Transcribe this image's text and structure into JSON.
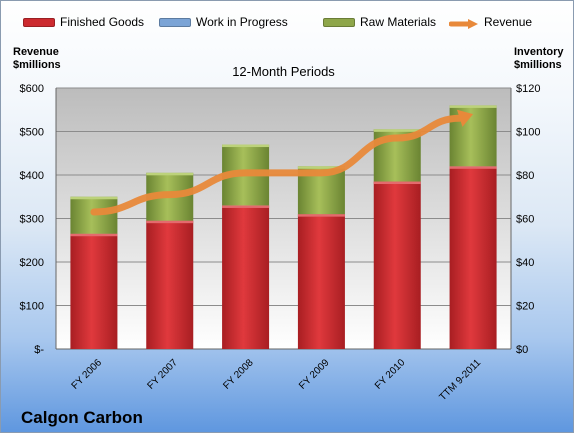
{
  "chart_data": {
    "type": "bar",
    "title": "12-Month Periods",
    "company": "Calgon Carbon",
    "y_left": {
      "label_line1": "Revenue",
      "label_line2": "$millions",
      "range": [
        0,
        600
      ],
      "ticks": [
        "$-",
        "$100",
        "$200",
        "$300",
        "$400",
        "$500",
        "$600"
      ]
    },
    "y_right": {
      "label_line1": "Inventory",
      "label_line2": "$millions",
      "range": [
        0,
        120
      ],
      "ticks": [
        "$0",
        "$20",
        "$40",
        "$60",
        "$80",
        "$100",
        "$120"
      ]
    },
    "categories": [
      "FY 2006",
      "FY 2007",
      "FY 2008",
      "FY 2009",
      "FY 2010",
      "TTM 9-2011"
    ],
    "series": [
      {
        "name": "Finished Goods",
        "type": "stacked-bar",
        "axis": "right",
        "color": "#cc2a2f",
        "values": [
          53,
          59,
          66,
          62,
          77,
          84
        ]
      },
      {
        "name": "Work in Progress",
        "type": "stacked-bar",
        "axis": "right",
        "color": "#7ba4d6",
        "values": [
          0,
          0,
          0,
          0,
          0,
          0
        ]
      },
      {
        "name": "Raw Materials",
        "type": "stacked-bar",
        "axis": "right",
        "color": "#8ea64a",
        "values": [
          17,
          22,
          28,
          22,
          24,
          28
        ]
      },
      {
        "name": "Revenue",
        "type": "line",
        "axis": "left",
        "color": "#e8893a",
        "values": [
          315,
          355,
          405,
          405,
          485,
          540
        ]
      }
    ],
    "grid": true,
    "legend_position": "top"
  }
}
